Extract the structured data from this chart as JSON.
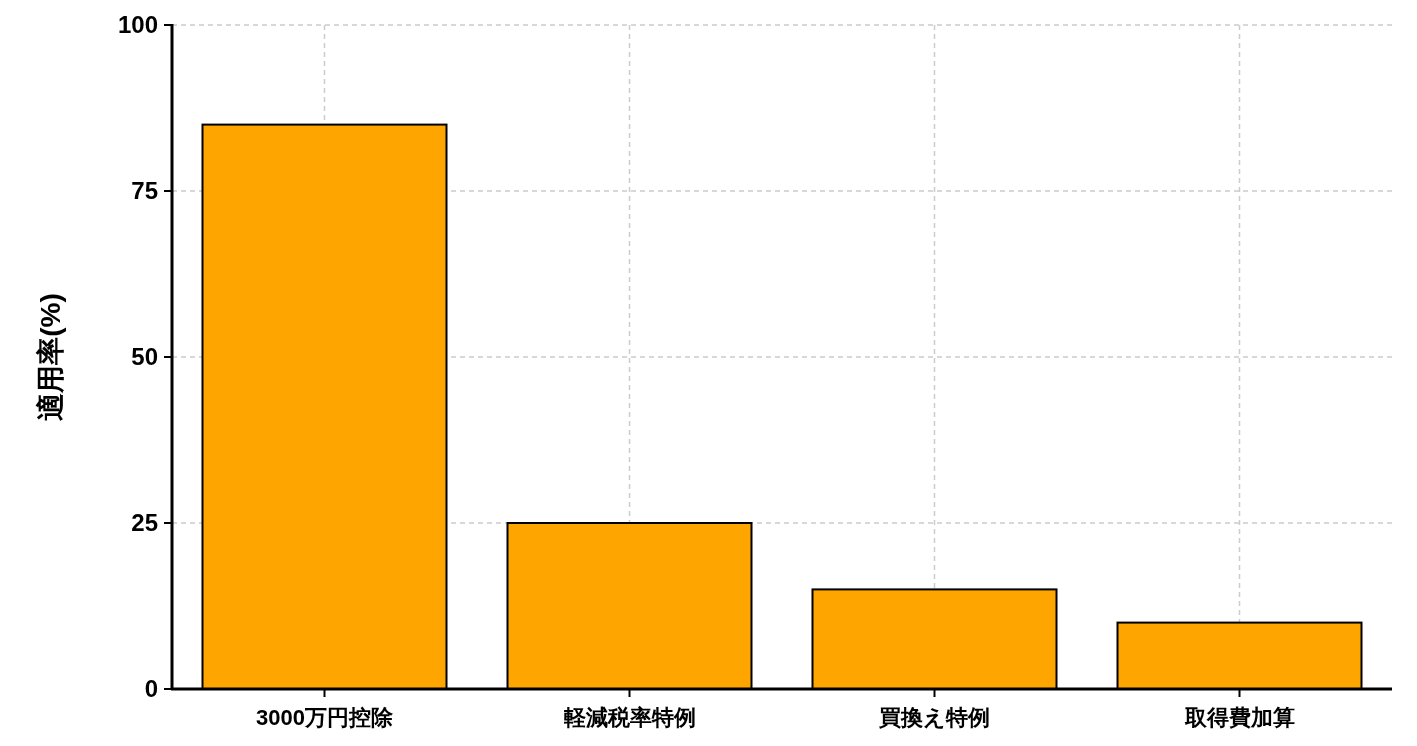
{
  "chart_data": {
    "type": "bar",
    "ylabel": "適用率(%)",
    "categories": [
      "3000万円控除",
      "軽減税率特例",
      "買換え特例",
      "取得費加算"
    ],
    "values": [
      85,
      25,
      15,
      10
    ],
    "color": "#ffa500",
    "ylim": [
      0,
      100
    ],
    "yticks": [
      0,
      25,
      50,
      75,
      100
    ],
    "grid": true
  }
}
